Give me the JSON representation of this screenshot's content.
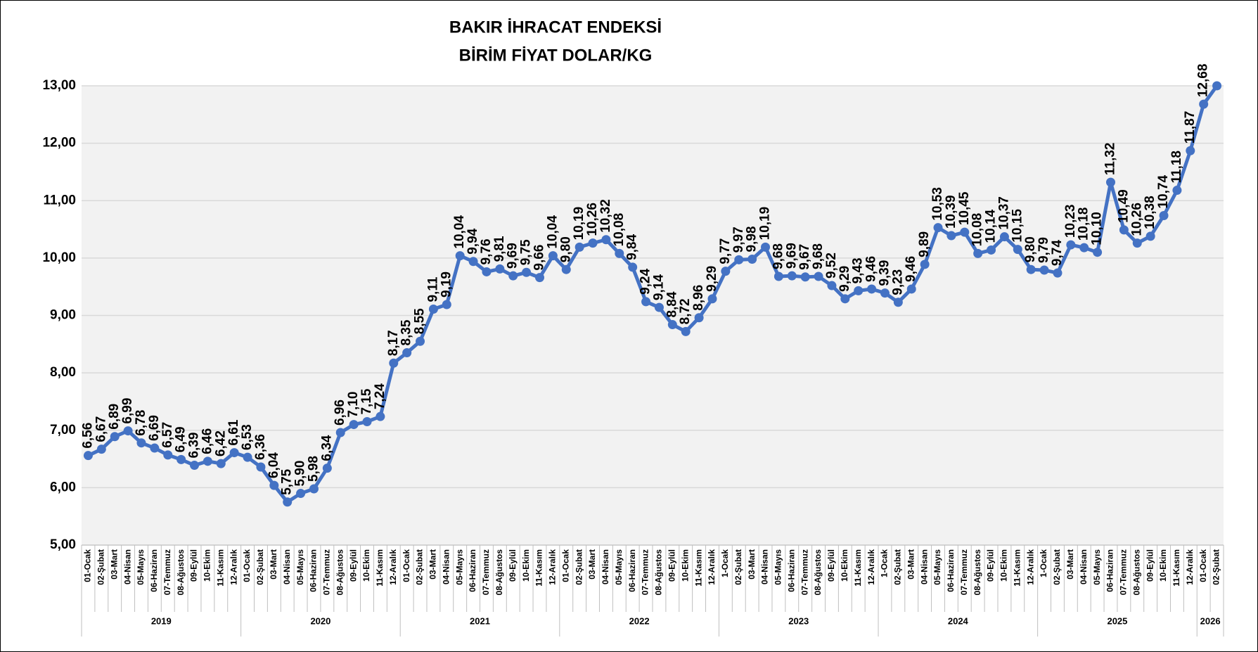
{
  "chart_data": {
    "type": "line",
    "title": [
      "BAKIR İHRACAT ENDEKSİ",
      "BİRİM FİYAT DOLAR/KG"
    ],
    "groups": [
      {
        "label": "2019",
        "categories": [
          "01-Ocak",
          "02-Şubat",
          "03-Mart",
          "04-Nisan",
          "05-Mayıs",
          "06-Haziran",
          "07-Temmuz",
          "08-Ağustos",
          "09-Eylül",
          "10-Ekim",
          "11-Kasım",
          "12-Aralık"
        ]
      },
      {
        "label": "2020",
        "categories": [
          "01-Ocak",
          "02-Şubat",
          "03-Mart",
          "04-Nisan",
          "05-Mayıs",
          "06-Haziran",
          "07-Temmuz",
          "08-Ağustos",
          "09-Eylül",
          "10-Ekim",
          "11-Kasım",
          "12-Aralık"
        ]
      },
      {
        "label": "2021",
        "categories": [
          "01-Ocak",
          "02-Şubat",
          "03-Mart",
          "04-Nisan",
          "05-Mayıs",
          "06-Haziran",
          "07-Temmuz",
          "08-Ağustos",
          "09-Eylül",
          "10-Ekim",
          "11-Kasım",
          "12-Aralık"
        ]
      },
      {
        "label": "2022",
        "categories": [
          "01-Ocak",
          "02-Şubat",
          "03-Mart",
          "04-Nisan",
          "05-Mayıs",
          "06-Haziran",
          "07-Temmuz",
          "08-Ağustos",
          "09-Eylül",
          "10-Ekim",
          "11-Kasım",
          "12-Aralık"
        ]
      },
      {
        "label": "2023",
        "categories": [
          "1-Ocak",
          "02-Şubat",
          "03-Mart",
          "04-Nisan",
          "05-Mayıs",
          "06-Haziran",
          "07-Temmuz",
          "08-Ağustos",
          "09-Eylül",
          "10-Ekim",
          "11-Kasım",
          "12-Aralık"
        ]
      },
      {
        "label": "2024",
        "categories": [
          "1-Ocak",
          "02-Şubat",
          "03-Mart",
          "04-Nisan",
          "05-Mayıs",
          "06-Haziran",
          "07-Temmuz",
          "08-Ağustos",
          "09-Eylül",
          "10-Ekim",
          "11-Kasım",
          "12-Aralık"
        ]
      },
      {
        "label": "2025",
        "categories": [
          "1-Ocak",
          "02-Şubat",
          "03-Mart",
          "04-Nisan",
          "05-Mayıs",
          "06-Haziran",
          "07-Temmuz",
          "08-Ağustos",
          "09-Eylül",
          "10-Ekim",
          "11-Kasım",
          "12-Aralık"
        ]
      },
      {
        "label": "2026",
        "categories": [
          "01-Ocak",
          "02-Şubat"
        ]
      }
    ],
    "values": [
      6.56,
      6.67,
      6.89,
      6.99,
      6.78,
      6.69,
      6.57,
      6.49,
      6.39,
      6.46,
      6.42,
      6.61,
      6.53,
      6.36,
      6.04,
      5.75,
      5.9,
      5.98,
      6.34,
      6.96,
      7.1,
      7.15,
      7.24,
      8.17,
      8.35,
      8.55,
      9.11,
      9.19,
      10.04,
      9.94,
      9.76,
      9.81,
      9.69,
      9.75,
      9.66,
      10.04,
      9.8,
      10.19,
      10.26,
      10.32,
      10.08,
      9.84,
      9.24,
      9.14,
      8.84,
      8.72,
      8.96,
      9.29,
      9.77,
      9.97,
      9.98,
      10.19,
      9.68,
      9.69,
      9.67,
      9.68,
      9.52,
      9.29,
      9.43,
      9.46,
      9.39,
      9.23,
      9.46,
      9.89,
      10.53,
      10.39,
      10.45,
      10.08,
      10.14,
      10.37,
      10.15,
      9.8,
      9.79,
      9.74,
      10.23,
      10.18,
      10.1,
      11.32,
      10.49,
      10.26,
      10.38,
      10.74,
      11.18,
      11.87,
      12.68,
      13.0
    ],
    "value_labels": [
      "6,56",
      "6,67",
      "6,89",
      "6,99",
      "6,78",
      "6,69",
      "6,57",
      "6,49",
      "6,39",
      "6,46",
      "6,42",
      "6,61",
      "6,53",
      "6,36",
      "6,04",
      "5,75",
      "5,90",
      "5,98",
      "6,34",
      "6,96",
      "7,10",
      "7,15",
      "7,24",
      "8,17",
      "8,35",
      "8,55",
      "9,11",
      "9,19",
      "10,04",
      "9,94",
      "9,76",
      "9,81",
      "9,69",
      "9,75",
      "9,66",
      "10,04",
      "9,80",
      "10,19",
      "10,26",
      "10,32",
      "10,08",
      "9,84",
      "9,24",
      "9,14",
      "8,84",
      "8,72",
      "8,96",
      "9,29",
      "9,77",
      "9,97",
      "9,98",
      "10,19",
      "9,68",
      "9,69",
      "9,67",
      "9,68",
      "9,52",
      "9,29",
      "9,43",
      "9,46",
      "9,39",
      "9,23",
      "9,46",
      "9,89",
      "10,53",
      "10,39",
      "10,45",
      "10,08",
      "10,14",
      "10,37",
      "10,15",
      "9,80",
      "9,79",
      "9,74",
      "10,23",
      "10,18",
      "10,10",
      "11,32",
      "10,49",
      "10,26",
      "10,38",
      "10,74",
      "11,18",
      "11,87",
      "12,68",
      null
    ],
    "color": "#4472c4",
    "ylim": [
      5,
      13
    ],
    "yticks": [
      {
        "value": 5,
        "label": "5,00"
      },
      {
        "value": 6,
        "label": "6,00"
      },
      {
        "value": 7,
        "label": "7,00"
      },
      {
        "value": 8,
        "label": "8,00"
      },
      {
        "value": 9,
        "label": "9,00"
      },
      {
        "value": 10,
        "label": "10,00"
      },
      {
        "value": 11,
        "label": "11,00"
      },
      {
        "value": 12,
        "label": "12,00"
      },
      {
        "value": 13,
        "label": "13,00"
      }
    ],
    "grid": true
  }
}
